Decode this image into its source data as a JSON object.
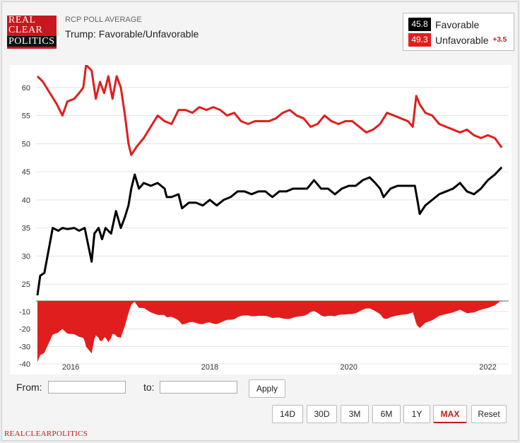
{
  "logo": {
    "line1": "REAL",
    "line2": "CLEAR",
    "line3": "POLITICS"
  },
  "header": {
    "subtitle": "RCP POLL AVERAGE",
    "title": "Trump: Favorable/Unfavorable"
  },
  "legend": {
    "favorable": {
      "value": "45.8",
      "label": "Favorable",
      "color": "#000000"
    },
    "unfavorable": {
      "value": "49.3",
      "label": "Unfavorable",
      "change": "+3.5",
      "color": "#e01e1e"
    }
  },
  "chart_data": {
    "type": "line",
    "x_ticks": [
      "2016",
      "2018",
      "2020",
      "2022"
    ],
    "y_ticks": [
      25,
      30,
      35,
      40,
      45,
      50,
      55,
      60
    ],
    "ylim": [
      22,
      64
    ],
    "spread_ticks": [
      -10,
      -20,
      -30,
      -40
    ],
    "spread_ylim": [
      -42,
      -4
    ],
    "xlim": [
      2015.5,
      2022.3
    ],
    "series": [
      {
        "name": "Favorable",
        "color": "#000000",
        "points": [
          [
            2015.52,
            23
          ],
          [
            2015.56,
            26.5
          ],
          [
            2015.62,
            27
          ],
          [
            2015.68,
            31
          ],
          [
            2015.74,
            35
          ],
          [
            2015.82,
            34.5
          ],
          [
            2015.88,
            35
          ],
          [
            2015.95,
            34.8
          ],
          [
            2016.05,
            35
          ],
          [
            2016.12,
            34.5
          ],
          [
            2016.2,
            35
          ],
          [
            2016.25,
            32
          ],
          [
            2016.3,
            29
          ],
          [
            2016.34,
            34
          ],
          [
            2016.4,
            35
          ],
          [
            2016.45,
            33
          ],
          [
            2016.5,
            35
          ],
          [
            2016.58,
            34
          ],
          [
            2016.65,
            38
          ],
          [
            2016.72,
            35
          ],
          [
            2016.78,
            37
          ],
          [
            2016.83,
            39
          ],
          [
            2016.87,
            42
          ],
          [
            2016.92,
            44.5
          ],
          [
            2016.98,
            42
          ],
          [
            2017.05,
            43
          ],
          [
            2017.15,
            42.5
          ],
          [
            2017.25,
            43
          ],
          [
            2017.35,
            42
          ],
          [
            2017.38,
            40.5
          ],
          [
            2017.45,
            40.5
          ],
          [
            2017.55,
            41
          ],
          [
            2017.6,
            38.5
          ],
          [
            2017.7,
            39.5
          ],
          [
            2017.8,
            39.5
          ],
          [
            2017.9,
            39
          ],
          [
            2018.0,
            40
          ],
          [
            2018.1,
            39
          ],
          [
            2018.2,
            40
          ],
          [
            2018.3,
            40.5
          ],
          [
            2018.4,
            41.5
          ],
          [
            2018.5,
            41.5
          ],
          [
            2018.6,
            41
          ],
          [
            2018.7,
            41.5
          ],
          [
            2018.8,
            41.5
          ],
          [
            2018.9,
            40.5
          ],
          [
            2019.0,
            41.5
          ],
          [
            2019.1,
            41.5
          ],
          [
            2019.2,
            42
          ],
          [
            2019.3,
            42
          ],
          [
            2019.4,
            42
          ],
          [
            2019.5,
            43.5
          ],
          [
            2019.6,
            42
          ],
          [
            2019.7,
            42
          ],
          [
            2019.8,
            41
          ],
          [
            2019.9,
            42
          ],
          [
            2020.0,
            42.5
          ],
          [
            2020.1,
            42.5
          ],
          [
            2020.2,
            43.5
          ],
          [
            2020.3,
            44
          ],
          [
            2020.38,
            43
          ],
          [
            2020.45,
            42
          ],
          [
            2020.5,
            40.5
          ],
          [
            2020.6,
            42
          ],
          [
            2020.7,
            42.5
          ],
          [
            2020.8,
            42.5
          ],
          [
            2020.88,
            42.5
          ],
          [
            2020.95,
            42.5
          ],
          [
            2021.0,
            39
          ],
          [
            2021.02,
            37.5
          ],
          [
            2021.1,
            39
          ],
          [
            2021.2,
            40
          ],
          [
            2021.3,
            41
          ],
          [
            2021.4,
            41.5
          ],
          [
            2021.5,
            42
          ],
          [
            2021.6,
            43
          ],
          [
            2021.7,
            41.5
          ],
          [
            2021.8,
            41
          ],
          [
            2021.9,
            42
          ],
          [
            2022.0,
            43.5
          ],
          [
            2022.1,
            44.5
          ],
          [
            2022.2,
            45.8
          ]
        ]
      },
      {
        "name": "Unfavorable",
        "color": "#e01e1e",
        "points": [
          [
            2015.52,
            62
          ],
          [
            2015.6,
            61
          ],
          [
            2015.7,
            59
          ],
          [
            2015.8,
            57
          ],
          [
            2015.88,
            55
          ],
          [
            2015.95,
            57.5
          ],
          [
            2016.05,
            58
          ],
          [
            2016.12,
            59
          ],
          [
            2016.18,
            60
          ],
          [
            2016.22,
            64
          ],
          [
            2016.3,
            63
          ],
          [
            2016.36,
            58
          ],
          [
            2016.42,
            61
          ],
          [
            2016.48,
            59
          ],
          [
            2016.54,
            62
          ],
          [
            2016.6,
            58
          ],
          [
            2016.66,
            62
          ],
          [
            2016.72,
            60
          ],
          [
            2016.78,
            55
          ],
          [
            2016.83,
            50
          ],
          [
            2016.87,
            48
          ],
          [
            2016.95,
            49.5
          ],
          [
            2017.05,
            51
          ],
          [
            2017.15,
            53
          ],
          [
            2017.25,
            55
          ],
          [
            2017.35,
            54
          ],
          [
            2017.45,
            53.5
          ],
          [
            2017.55,
            56
          ],
          [
            2017.65,
            56
          ],
          [
            2017.75,
            55.5
          ],
          [
            2017.85,
            56.5
          ],
          [
            2017.95,
            56
          ],
          [
            2018.05,
            56.5
          ],
          [
            2018.15,
            56
          ],
          [
            2018.25,
            55
          ],
          [
            2018.35,
            55.5
          ],
          [
            2018.45,
            54
          ],
          [
            2018.55,
            53.5
          ],
          [
            2018.65,
            54
          ],
          [
            2018.75,
            54
          ],
          [
            2018.85,
            54
          ],
          [
            2018.95,
            54.5
          ],
          [
            2019.05,
            55.5
          ],
          [
            2019.15,
            56
          ],
          [
            2019.25,
            55
          ],
          [
            2019.35,
            54.5
          ],
          [
            2019.45,
            53
          ],
          [
            2019.55,
            53.5
          ],
          [
            2019.65,
            55
          ],
          [
            2019.75,
            54
          ],
          [
            2019.85,
            53.5
          ],
          [
            2019.95,
            54
          ],
          [
            2020.05,
            54
          ],
          [
            2020.15,
            53
          ],
          [
            2020.25,
            52
          ],
          [
            2020.35,
            52.5
          ],
          [
            2020.45,
            53.5
          ],
          [
            2020.55,
            55.5
          ],
          [
            2020.65,
            55
          ],
          [
            2020.75,
            54.5
          ],
          [
            2020.85,
            54
          ],
          [
            2020.92,
            53
          ],
          [
            2020.97,
            58.5
          ],
          [
            2021.02,
            57
          ],
          [
            2021.1,
            55.5
          ],
          [
            2021.2,
            55
          ],
          [
            2021.3,
            53.5
          ],
          [
            2021.4,
            53
          ],
          [
            2021.5,
            52.5
          ],
          [
            2021.6,
            52
          ],
          [
            2021.7,
            52.5
          ],
          [
            2021.8,
            51.5
          ],
          [
            2021.9,
            51
          ],
          [
            2022.0,
            51.5
          ],
          [
            2022.1,
            51
          ],
          [
            2022.2,
            49.3
          ]
        ]
      }
    ],
    "spread": {
      "color": "#e01e1e",
      "note": "Favorable minus Unfavorable"
    }
  },
  "controls": {
    "from_label": "From:",
    "to_label": "to:",
    "from_value": "",
    "to_value": "",
    "apply_label": "Apply",
    "ranges": [
      "14D",
      "30D",
      "3M",
      "6M",
      "1Y",
      "MAX",
      "Reset"
    ],
    "selected_range": "MAX"
  },
  "footer": {
    "text": "REALCLEARPOLITICS"
  }
}
